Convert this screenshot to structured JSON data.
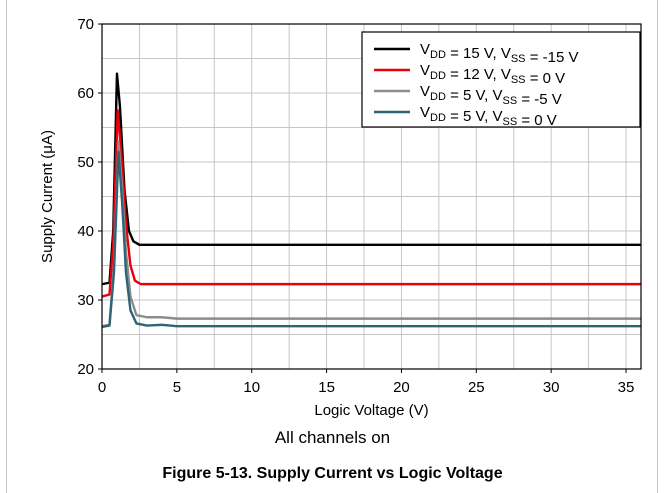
{
  "chart_data": {
    "type": "line",
    "title": "",
    "xlabel": "Logic Voltage (V)",
    "ylabel_main": "Supply Current (",
    "ylabel_mu": "μ",
    "ylabel_tail": "A)",
    "xlim": [
      0,
      36
    ],
    "ylim": [
      20,
      70
    ],
    "xticks": [
      0,
      5,
      10,
      15,
      20,
      25,
      30,
      35
    ],
    "yticks": [
      20,
      30,
      40,
      50,
      60,
      70
    ],
    "grid": true,
    "legend_position": "top-right",
    "series": [
      {
        "label": [
          [
            "V",
            "DD"
          ],
          " = 15 V, ",
          [
            "V",
            "SS"
          ],
          " = -15 V"
        ],
        "color": "#000000",
        "points": [
          [
            0,
            32.3
          ],
          [
            0.5,
            32.5
          ],
          [
            0.75,
            40
          ],
          [
            1.0,
            62.8
          ],
          [
            1.2,
            58
          ],
          [
            1.5,
            46
          ],
          [
            1.8,
            40
          ],
          [
            2.1,
            38.5
          ],
          [
            2.5,
            38
          ],
          [
            5,
            38
          ],
          [
            10,
            38
          ],
          [
            20,
            38
          ],
          [
            30,
            38
          ],
          [
            36,
            38
          ]
        ]
      },
      {
        "label": [
          [
            "V",
            "DD"
          ],
          " = 12 V, ",
          [
            "V",
            "SS"
          ],
          " = 0 V"
        ],
        "color": "#e8000b",
        "points": [
          [
            0,
            30.5
          ],
          [
            0.5,
            30.8
          ],
          [
            0.75,
            38
          ],
          [
            1.05,
            57.5
          ],
          [
            1.3,
            51
          ],
          [
            1.6,
            41
          ],
          [
            1.9,
            35
          ],
          [
            2.2,
            32.8
          ],
          [
            2.6,
            32.3
          ],
          [
            5,
            32.3
          ],
          [
            10,
            32.3
          ],
          [
            20,
            32.3
          ],
          [
            30,
            32.3
          ],
          [
            36,
            32.3
          ]
        ]
      },
      {
        "label": [
          [
            "V",
            "DD"
          ],
          " = 5 V, ",
          [
            "V",
            "SS"
          ],
          " = -5 V"
        ],
        "color": "#8c8c8c",
        "points": [
          [
            0,
            26.2
          ],
          [
            0.5,
            26.4
          ],
          [
            0.8,
            35
          ],
          [
            1.1,
            53
          ],
          [
            1.35,
            46
          ],
          [
            1.6,
            37
          ],
          [
            1.9,
            30.5
          ],
          [
            2.3,
            27.8
          ],
          [
            3,
            27.5
          ],
          [
            4,
            27.5
          ],
          [
            5,
            27.3
          ],
          [
            10,
            27.3
          ],
          [
            20,
            27.3
          ],
          [
            36,
            27.3
          ]
        ]
      },
      {
        "label": [
          [
            "V",
            "DD"
          ],
          " = 5 V, ",
          [
            "V",
            "SS"
          ],
          " = 0 V"
        ],
        "color": "#2f6375",
        "points": [
          [
            0,
            26.1
          ],
          [
            0.5,
            26.3
          ],
          [
            0.8,
            34
          ],
          [
            1.1,
            51.5
          ],
          [
            1.35,
            44
          ],
          [
            1.6,
            34
          ],
          [
            1.9,
            28.5
          ],
          [
            2.3,
            26.6
          ],
          [
            3,
            26.3
          ],
          [
            4,
            26.4
          ],
          [
            5,
            26.2
          ],
          [
            10,
            26.2
          ],
          [
            20,
            26.2
          ],
          [
            36,
            26.2
          ]
        ]
      }
    ]
  },
  "note": "All channels on",
  "caption": "Figure 5-13. Supply Current vs Logic Voltage"
}
